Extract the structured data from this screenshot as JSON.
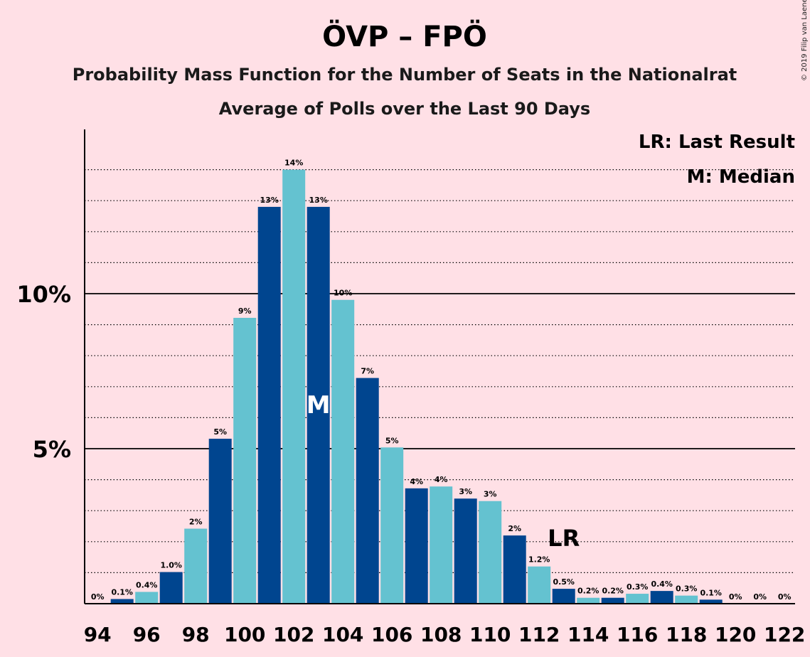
{
  "header": {
    "title": "ÖVP – FPÖ",
    "subtitle1": "Probability Mass Function for the Number of Seats in the Nationalrat",
    "subtitle2": "Average of Polls over the Last 90 Days",
    "copyright": "© 2019 Filip van Laenen"
  },
  "legend": {
    "last_result": "LR: Last Result",
    "median": "M: Median"
  },
  "colors": {
    "background": "#FFE0E6",
    "dark_bar": "#00458F",
    "light_bar": "#64C2D0",
    "grid": "#000000"
  },
  "chart_data": {
    "type": "bar",
    "x": [
      94,
      95,
      96,
      97,
      98,
      99,
      100,
      101,
      102,
      103,
      104,
      105,
      106,
      107,
      108,
      109,
      110,
      111,
      112,
      113,
      114,
      115,
      116,
      117,
      118,
      119,
      120,
      121,
      122
    ],
    "values": [
      0.0,
      0.15,
      0.38,
      1.02,
      2.42,
      5.32,
      9.22,
      12.8,
      14.0,
      12.8,
      9.8,
      7.28,
      5.04,
      3.72,
      3.78,
      3.39,
      3.31,
      2.2,
      1.2,
      0.48,
      0.19,
      0.19,
      0.32,
      0.41,
      0.26,
      0.13,
      0.0,
      0.0,
      0.0
    ],
    "labels": [
      "0%",
      "0.1%",
      "0.4%",
      "1.0%",
      "2%",
      "5%",
      "9%",
      "13%",
      "14%",
      "13%",
      "10%",
      "7%",
      "5%",
      "4%",
      "4%",
      "3%",
      "3%",
      "2%",
      "1.2%",
      "0.5%",
      "0.2%",
      "0.2%",
      "0.3%",
      "0.4%",
      "0.3%",
      "0.1%",
      "0%",
      "0%",
      "0%"
    ],
    "xtick_labels": [
      "94",
      "96",
      "98",
      "100",
      "102",
      "104",
      "106",
      "108",
      "110",
      "112",
      "114",
      "116",
      "118",
      "120",
      "122"
    ],
    "ytick_labels": [
      "5%",
      "10%"
    ],
    "ylim": [
      0,
      15
    ],
    "median_seat": 103,
    "median_label": "M",
    "last_result_seat": 113,
    "last_result_label": "LR",
    "grid": "dotted every 1%, solid at 5% and 10%"
  }
}
